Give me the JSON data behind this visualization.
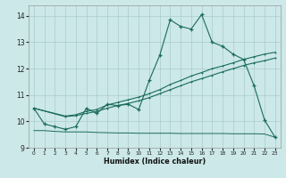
{
  "xlabel": "Humidex (Indice chaleur)",
  "background_color": "#cce8e8",
  "grid_color": "#aacccc",
  "line_color": "#1a6b5a",
  "xlim": [
    -0.5,
    23.5
  ],
  "ylim": [
    9.0,
    14.4
  ],
  "yticks": [
    9,
    10,
    11,
    12,
    13,
    14
  ],
  "xticks": [
    0,
    1,
    2,
    3,
    4,
    5,
    6,
    7,
    8,
    9,
    10,
    11,
    12,
    13,
    14,
    15,
    16,
    17,
    18,
    19,
    20,
    21,
    22,
    23
  ],
  "series1_x": [
    0,
    1,
    2,
    3,
    4,
    5,
    6,
    7,
    8,
    9,
    10,
    11,
    12,
    13,
    14,
    15,
    16,
    17,
    18,
    19,
    20,
    21,
    22,
    23
  ],
  "series1_y": [
    10.5,
    9.9,
    9.8,
    9.7,
    9.8,
    10.5,
    10.3,
    10.65,
    10.6,
    10.65,
    10.45,
    11.55,
    12.5,
    13.85,
    13.6,
    13.5,
    14.05,
    13.0,
    12.85,
    12.55,
    12.35,
    11.35,
    10.05,
    9.4
  ],
  "series2_x": [
    0,
    1,
    2,
    3,
    4,
    5,
    6,
    7,
    8,
    9,
    10,
    11,
    12,
    13,
    14,
    15,
    16,
    17,
    18,
    19,
    20,
    21,
    22,
    23
  ],
  "series2_y": [
    9.65,
    9.65,
    9.62,
    9.6,
    9.6,
    9.6,
    9.58,
    9.57,
    9.56,
    9.56,
    9.55,
    9.55,
    9.55,
    9.55,
    9.54,
    9.54,
    9.54,
    9.54,
    9.54,
    9.53,
    9.53,
    9.53,
    9.52,
    9.4
  ],
  "series3_x": [
    0,
    3,
    4,
    5,
    6,
    7,
    8,
    9,
    10,
    11,
    12,
    13,
    14,
    15,
    16,
    17,
    18,
    19,
    20,
    21,
    22,
    23
  ],
  "series3_y": [
    10.5,
    10.2,
    10.25,
    10.38,
    10.45,
    10.62,
    10.72,
    10.82,
    10.92,
    11.05,
    11.2,
    11.4,
    11.55,
    11.72,
    11.85,
    12.0,
    12.1,
    12.22,
    12.35,
    12.45,
    12.55,
    12.62
  ],
  "series4_x": [
    0,
    3,
    4,
    5,
    6,
    7,
    8,
    9,
    10,
    11,
    12,
    13,
    14,
    15,
    16,
    17,
    18,
    19,
    20,
    21,
    22,
    23
  ],
  "series4_y": [
    10.5,
    10.18,
    10.22,
    10.3,
    10.38,
    10.5,
    10.6,
    10.68,
    10.78,
    10.9,
    11.05,
    11.2,
    11.35,
    11.5,
    11.62,
    11.75,
    11.88,
    12.0,
    12.12,
    12.22,
    12.3,
    12.4
  ]
}
